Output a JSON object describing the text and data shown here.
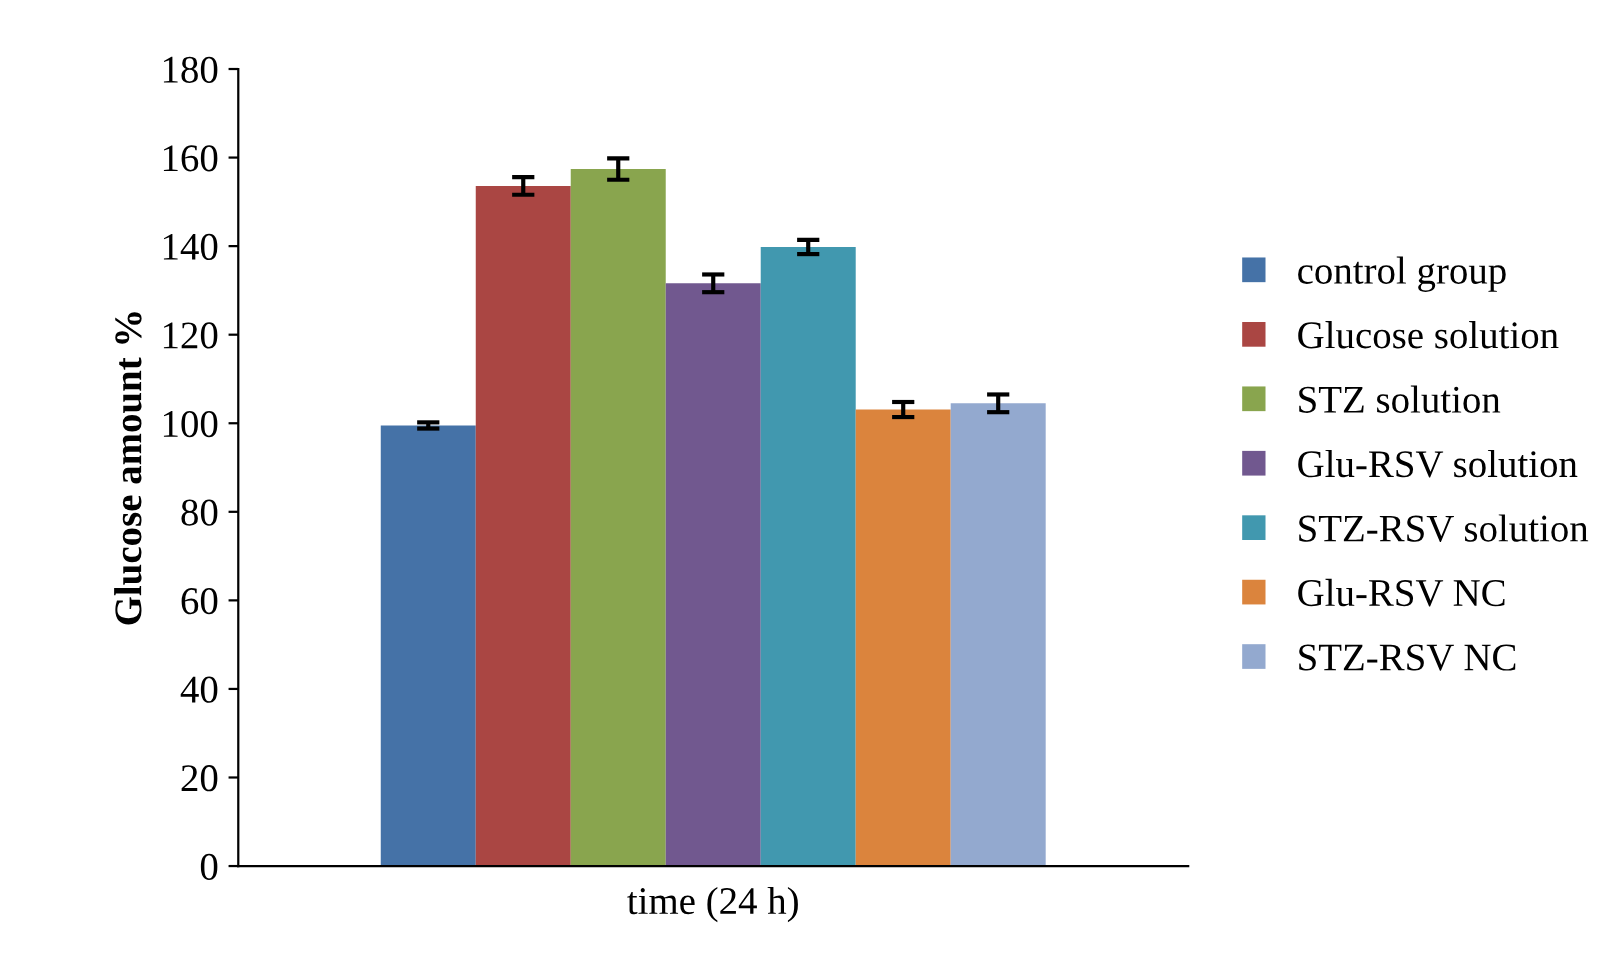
{
  "chart_data": {
    "type": "bar",
    "xlabel": "time (24 h)",
    "ylabel": "Glucose amount %",
    "categories": [
      null
    ],
    "series": [
      {
        "name": "control group",
        "color": "#4572a7",
        "values": [
          99.5
        ],
        "errors": [
          0.7
        ]
      },
      {
        "name": "Glucose solution",
        "color": "#aa4643",
        "values": [
          153.6
        ],
        "errors": [
          2
        ]
      },
      {
        "name": "STZ solution",
        "color": "#89a54e",
        "values": [
          157.4
        ],
        "errors": [
          2.4
        ]
      },
      {
        "name": "Glu-RSV solution",
        "color": "#71588f",
        "values": [
          131.6
        ],
        "errors": [
          2
        ]
      },
      {
        "name": "STZ-RSV solution",
        "color": "#4198af",
        "values": [
          139.8
        ],
        "errors": [
          1.6
        ]
      },
      {
        "name": "Glu-RSV NC",
        "color": "#db843d",
        "values": [
          103.1
        ],
        "errors": [
          1.7
        ]
      },
      {
        "name": "STZ-RSV NC",
        "color": "#93a9cf",
        "values": [
          104.5
        ],
        "errors": [
          2
        ]
      }
    ],
    "ylim": [
      0,
      180
    ],
    "yticks": [
      0,
      20,
      40,
      60,
      80,
      100,
      120,
      140,
      160,
      180
    ],
    "grid": false,
    "legend": "right"
  }
}
